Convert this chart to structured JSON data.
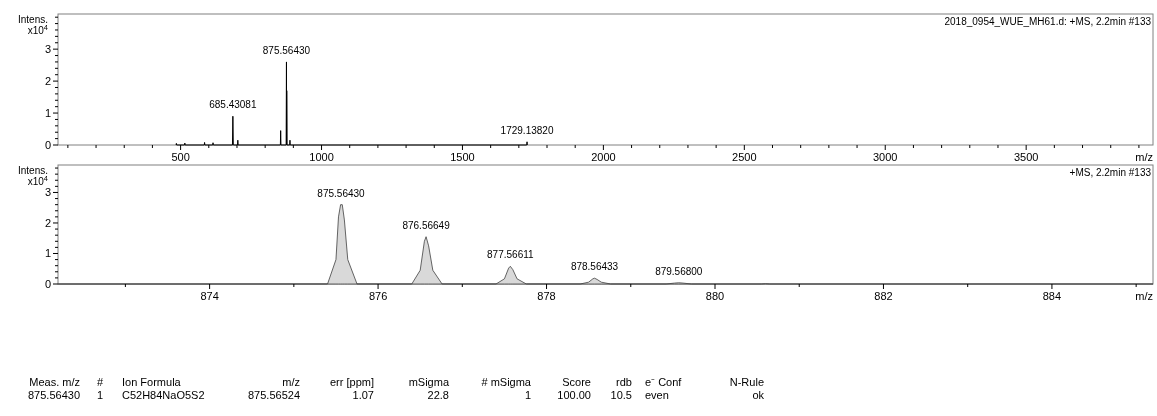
{
  "chart_data": [
    {
      "type": "line",
      "ylabel": "Intens.\nx10$^{4}$",
      "xlabel": "m/z",
      "xlim": [
        65,
        3950
      ],
      "ylim": [
        0,
        4.1
      ],
      "xticks": [
        {
          "value": 100,
          "label": null
        },
        {
          "value": 200,
          "label": null
        },
        {
          "value": 300,
          "label": null
        },
        {
          "value": 400,
          "label": null
        },
        500,
        {
          "value": 600,
          "label": null
        },
        {
          "value": 700,
          "label": null
        },
        {
          "value": 800,
          "label": null
        },
        {
          "value": 900,
          "label": null
        },
        1000,
        {
          "value": 1100,
          "label": null
        },
        {
          "value": 1200,
          "label": null
        },
        {
          "value": 1300,
          "label": null
        },
        {
          "value": 1400,
          "label": null
        },
        1500,
        {
          "value": 1600,
          "label": null
        },
        {
          "value": 1700,
          "label": null
        },
        {
          "value": 1800,
          "label": null
        },
        {
          "value": 1900,
          "label": null
        },
        2000,
        {
          "value": 2100,
          "label": null
        },
        {
          "value": 2200,
          "label": null
        },
        {
          "value": 2300,
          "label": null
        },
        {
          "value": 2400,
          "label": null
        },
        2500,
        {
          "value": 2600,
          "label": null
        },
        {
          "value": 2700,
          "label": null
        },
        {
          "value": 2800,
          "label": null
        },
        {
          "value": 2900,
          "label": null
        },
        3000,
        {
          "value": 3100,
          "label": null
        },
        {
          "value": 3200,
          "label": null
        },
        {
          "value": 3300,
          "label": null
        },
        {
          "value": 3400,
          "label": null
        },
        3500,
        {
          "value": 3600,
          "label": null
        },
        {
          "value": 3700,
          "label": null
        },
        {
          "value": 3800,
          "label": null
        },
        {
          "value": 3900,
          "label": null
        }
      ],
      "yticks": [
        0,
        {
          "value": 0.2,
          "label": null
        },
        {
          "value": 0.4,
          "label": null
        },
        {
          "value": 0.6,
          "label": null
        },
        {
          "value": 0.8,
          "label": null
        },
        1,
        {
          "value": 1.2,
          "label": null
        },
        {
          "value": 1.4,
          "label": null
        },
        {
          "value": 1.6,
          "label": null
        },
        {
          "value": 1.8,
          "label": null
        },
        2,
        {
          "value": 2.2,
          "label": null
        },
        {
          "value": 2.4,
          "label": null
        },
        {
          "value": 2.6,
          "label": null
        },
        {
          "value": 2.8,
          "label": null
        },
        3,
        {
          "value": 3.2,
          "label": null
        },
        {
          "value": 3.4,
          "label": null
        },
        {
          "value": 3.6,
          "label": null
        },
        {
          "value": 3.8,
          "label": null
        },
        {
          "value": 4,
          "label": null
        }
      ],
      "series": [
        {
          "color": "#000000",
          "x": [
            484,
            485,
            486,
            514,
            515,
            516,
            584,
            585,
            586,
            614,
            615,
            616,
            684,
            685.43,
            687,
            702,
            703,
            704,
            854,
            855,
            856,
            874.5,
            875.56,
            876.1,
            876.57,
            877.6,
            887,
            888,
            889,
            1728,
            1729.14,
            1730
          ],
          "values": [
            0,
            0.05,
            0,
            0,
            0.06,
            0,
            0,
            0.08,
            0,
            0,
            0.07,
            0,
            0,
            0.9,
            0,
            0,
            0.15,
            0,
            0,
            0.45,
            0,
            0,
            2.6,
            0,
            1.7,
            0,
            0,
            0.15,
            0,
            0,
            0.1,
            0
          ]
        }
      ],
      "annotations": [
        "2018_0954_WUE_MH61.d: +MS, 2.2min #133",
        {
          "text": "685.43081",
          "x": 685.43,
          "y": 0.9
        },
        {
          "text": "875.56430",
          "x": 875.56,
          "y": 2.6
        },
        {
          "text": "1729.13820",
          "x": 1729.14,
          "y": 0.1
        }
      ]
    },
    {
      "type": "area",
      "ylabel": "Intens.\nx10$^{4}$",
      "xlabel": "m/z",
      "xlim": [
        872.2,
        885.2
      ],
      "ylim": [
        0,
        3.9
      ],
      "xticks": [
        {
          "value": 873,
          "label": null
        },
        874,
        {
          "value": 875,
          "label": null
        },
        876,
        {
          "value": 877,
          "label": null
        },
        878,
        {
          "value": 879,
          "label": null
        },
        880,
        {
          "value": 881,
          "label": null
        },
        882,
        {
          "value": 883,
          "label": null
        },
        884,
        {
          "value": 885,
          "label": null
        }
      ],
      "yticks": [
        0,
        {
          "value": 0.2,
          "label": null
        },
        {
          "value": 0.4,
          "label": null
        },
        {
          "value": 0.6,
          "label": null
        },
        {
          "value": 0.8,
          "label": null
        },
        1,
        {
          "value": 1.2,
          "label": null
        },
        {
          "value": 1.4,
          "label": null
        },
        {
          "value": 1.6,
          "label": null
        },
        {
          "value": 1.8,
          "label": null
        },
        2,
        {
          "value": 2.2,
          "label": null
        },
        {
          "value": 2.4,
          "label": null
        },
        {
          "value": 2.6,
          "label": null
        },
        {
          "value": 2.8,
          "label": null
        },
        3,
        {
          "value": 3.2,
          "label": null
        },
        {
          "value": 3.4,
          "label": null
        },
        {
          "value": 3.6,
          "label": null
        },
        {
          "value": 3.8,
          "label": null
        }
      ],
      "series": [
        {
          "color": "#d9d9d9",
          "x": [
            872.2,
            875.4,
            875.5,
            875.53,
            875.555,
            875.575,
            875.6,
            875.64,
            875.75,
            876.4,
            876.5,
            876.55,
            876.57,
            876.6,
            876.65,
            876.76,
            877.4,
            877.5,
            877.55,
            877.57,
            877.6,
            877.65,
            877.76,
            878.4,
            878.5,
            878.55,
            878.57,
            878.6,
            878.65,
            878.76,
            879.42,
            879.52,
            879.57,
            879.62,
            879.72,
            880.55,
            880.6,
            880.65,
            885.2
          ],
          "values": [
            0,
            0,
            0.8,
            2.2,
            2.6,
            2.6,
            2.1,
            0.8,
            0,
            0,
            0.45,
            1.4,
            1.55,
            1.25,
            0.45,
            0,
            0,
            0.17,
            0.52,
            0.58,
            0.47,
            0.17,
            0,
            0,
            0.06,
            0.17,
            0.19,
            0.15,
            0.06,
            0,
            0,
            0.03,
            0.04,
            0.03,
            0,
            0,
            0.01,
            0,
            0
          ]
        }
      ],
      "annotations": [
        "+MS, 2.2min #133",
        {
          "text": "875.56430",
          "x": 875.56,
          "y": 2.6
        },
        {
          "text": "876.56649",
          "x": 876.57,
          "y": 1.55
        },
        {
          "text": "877.56611",
          "x": 877.57,
          "y": 0.58
        },
        {
          "text": "878.56433",
          "x": 878.57,
          "y": 0.19
        },
        {
          "text": "879.56800",
          "x": 879.57,
          "y": 0.04
        }
      ]
    },
    {
      "type": "other",
      "annotations": [
        "Meas. m/z",
        "#",
        "Ion Formula",
        "m/z",
        "err [ppm]",
        "mSigma",
        "# mSigma",
        "Score",
        "rdb",
        "e⁻ Conf",
        "N-Rule",
        "875.56430",
        "1",
        "C52H84NaO5S2",
        "875.56524",
        "1.07",
        "22.8",
        "1",
        "100.00",
        "10.5",
        "even",
        "ok"
      ]
    }
  ]
}
